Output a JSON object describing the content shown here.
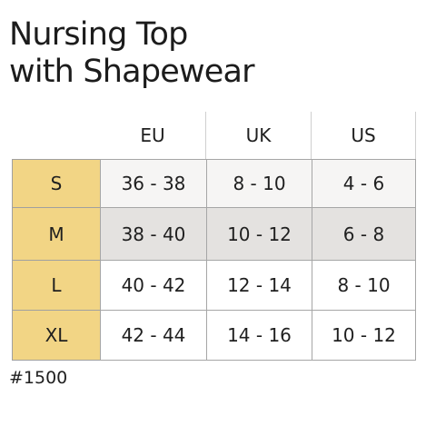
{
  "title": {
    "line1": "Nursing Top",
    "line2": "with Shapewear"
  },
  "size_table": {
    "columns": [
      "EU",
      "UK",
      "US"
    ],
    "rows": [
      {
        "size": "S",
        "values": [
          "36 - 38",
          "8 - 10",
          "4 - 6"
        ]
      },
      {
        "size": "M",
        "values": [
          "38 - 40",
          "10 - 12",
          "6 - 8"
        ]
      },
      {
        "size": "L",
        "values": [
          "40 - 42",
          "12 - 14",
          "8 - 10"
        ]
      },
      {
        "size": "XL",
        "values": [
          "42 - 44",
          "14 - 16",
          "10 - 12"
        ]
      }
    ]
  },
  "product_code": "#1500",
  "colors": {
    "size_label_bg": "#f2d585",
    "highlight_row_bg": "#e4e2e0",
    "light_row_bg": "#f6f5f4"
  }
}
